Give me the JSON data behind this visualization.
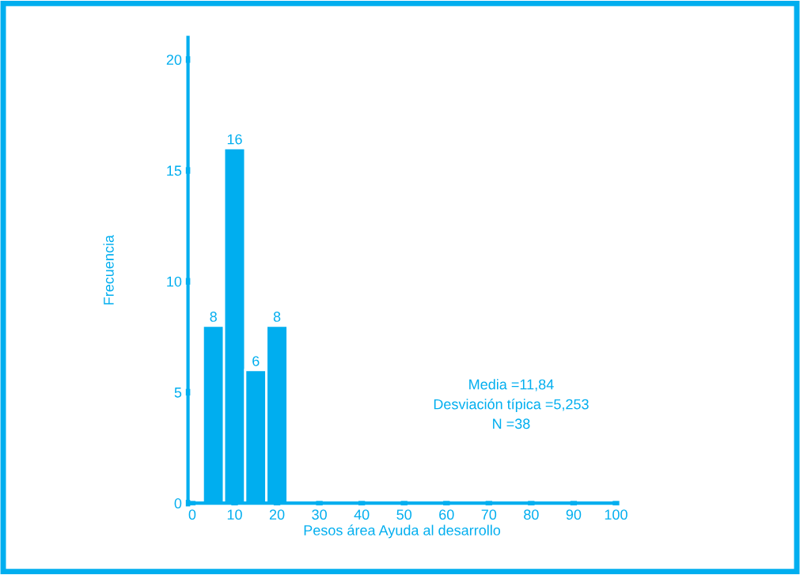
{
  "chart_data": {
    "type": "histogram",
    "xlabel": "Pesos área Ayuda al desarrollo",
    "ylabel": "Frecuencia",
    "bins": [
      2.5,
      7.5,
      12.5,
      17.5,
      22.5
    ],
    "values": [
      8,
      16,
      6,
      8
    ],
    "color": "#00aeef",
    "data_labels": true,
    "xlim": [
      -1,
      100
    ],
    "ylim": [
      0,
      21
    ],
    "xticks": [
      0,
      10,
      20,
      30,
      40,
      50,
      60,
      70,
      80,
      90,
      100
    ],
    "yticks": [
      0,
      5,
      10,
      15,
      20
    ],
    "grid": false,
    "annotations": [
      "Media =11,84\nDesviación típica =5,253\nN =38"
    ]
  }
}
